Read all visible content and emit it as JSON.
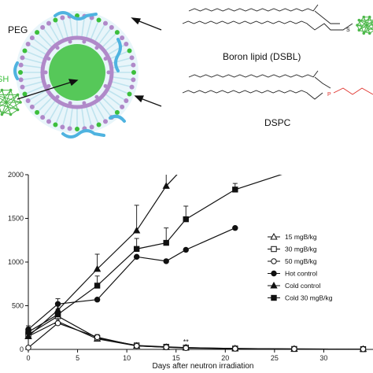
{
  "diagram": {
    "peg_label": "PEG",
    "sh_label": "SH",
    "boron_lipid_label": "Boron lipid (DSBL)",
    "dspc_label": "DSPC",
    "s_atom": "S",
    "p_atom": "P",
    "colors": {
      "shell": "#bfe3ee",
      "purple": "#b089c9",
      "green": "#3cbf3c",
      "cluster": "#4db84a",
      "blue_arrow": "#4fb3e0",
      "phosphate": "#e0302a"
    }
  },
  "chart_data": {
    "type": "line",
    "title": "",
    "xlabel": "Days after neutron irradiation",
    "ylabel": "",
    "xlim": [
      0,
      35
    ],
    "ylim": [
      0,
      2000
    ],
    "xticks": [
      0,
      5,
      10,
      15,
      20,
      25,
      30
    ],
    "yticks": [
      0,
      500,
      1000,
      1500,
      2000
    ],
    "annotation": {
      "text": "**",
      "x": 16,
      "y": 60
    },
    "legend_position": "right",
    "series": [
      {
        "name": "15 mgB/kg",
        "marker": "triangle-open",
        "x": [
          0,
          3,
          7,
          11,
          14,
          16,
          21,
          27,
          34
        ],
        "y": [
          150,
          320,
          120,
          40,
          25,
          20,
          10,
          5,
          3
        ],
        "err": [
          0,
          60,
          30,
          0,
          0,
          0,
          0,
          0,
          0
        ]
      },
      {
        "name": "30 mgB/kg",
        "marker": "square-open",
        "x": [
          0,
          3,
          7,
          11,
          14,
          16,
          21,
          27,
          34
        ],
        "y": [
          170,
          380,
          130,
          45,
          30,
          20,
          10,
          5,
          3
        ],
        "err": [
          0,
          60,
          40,
          0,
          0,
          0,
          0,
          0,
          0
        ]
      },
      {
        "name": "50 mgB/kg",
        "marker": "circle-open",
        "x": [
          0,
          3,
          7,
          11,
          14,
          16,
          21,
          27,
          34
        ],
        "y": [
          20,
          300,
          140,
          40,
          25,
          15,
          8,
          5,
          3
        ],
        "err": [
          0,
          0,
          0,
          0,
          0,
          0,
          0,
          0,
          0
        ]
      },
      {
        "name": "Hot control",
        "marker": "circle-filled",
        "x": [
          0,
          3,
          7,
          11,
          14,
          16,
          21
        ],
        "y": [
          230,
          520,
          570,
          1060,
          1010,
          1140,
          1390
        ],
        "err": [
          0,
          60,
          0,
          0,
          0,
          0,
          0
        ]
      },
      {
        "name": "Cold control",
        "marker": "triangle-filled",
        "x": [
          0,
          3,
          7,
          11,
          14,
          18
        ],
        "y": [
          150,
          450,
          920,
          1360,
          1870,
          2350
        ],
        "err": [
          0,
          0,
          170,
          290,
          190,
          0
        ]
      },
      {
        "name": "Cold 30 mgB/kg",
        "marker": "square-filled",
        "x": [
          0,
          3,
          7,
          11,
          14,
          16,
          21,
          27
        ],
        "y": [
          200,
          400,
          730,
          1150,
          1220,
          1490,
          1830,
          2050
        ],
        "err": [
          70,
          60,
          110,
          120,
          170,
          150,
          70,
          0
        ]
      }
    ]
  }
}
